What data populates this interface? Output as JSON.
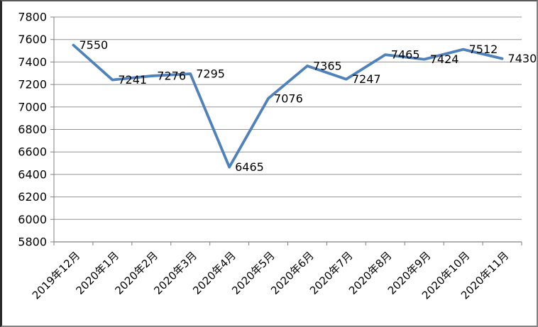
{
  "window": {
    "background_color": "#ffffff",
    "frame_border_color": "#808080"
  },
  "chart_data": {
    "type": "line",
    "title": "",
    "xlabel": "",
    "ylabel": "",
    "categories": [
      "2019年12月",
      "2020年1月",
      "2020年2月",
      "2020年3月",
      "2020年4月",
      "2020年5月",
      "2020年6月",
      "2020年7月",
      "2020年8月",
      "2020年9月",
      "2020年10月",
      "2020年11月"
    ],
    "series": [
      {
        "name": "",
        "values": [
          7550,
          7241,
          7276,
          7295,
          6465,
          7076,
          7365,
          7247,
          7465,
          7424,
          7512,
          7430
        ],
        "data_labels": [
          "7550",
          "7241",
          "7276",
          "7295",
          "6465",
          "7076",
          "7365",
          "7247",
          "7465",
          "7424",
          "7512",
          "7430"
        ]
      }
    ],
    "ylim": [
      5800,
      7800
    ],
    "y_tick_step": 200,
    "y_tick_labels": [
      "5800",
      "6000",
      "6200",
      "6400",
      "6600",
      "6800",
      "7000",
      "7200",
      "7400",
      "7600",
      "7800"
    ],
    "grid": true,
    "legend_position": "none",
    "line_color": "#4F81BD",
    "gridline_color": "#949494",
    "axis_color": "#808080",
    "text_color": "#000000",
    "x_label_rotation_deg": 45
  }
}
